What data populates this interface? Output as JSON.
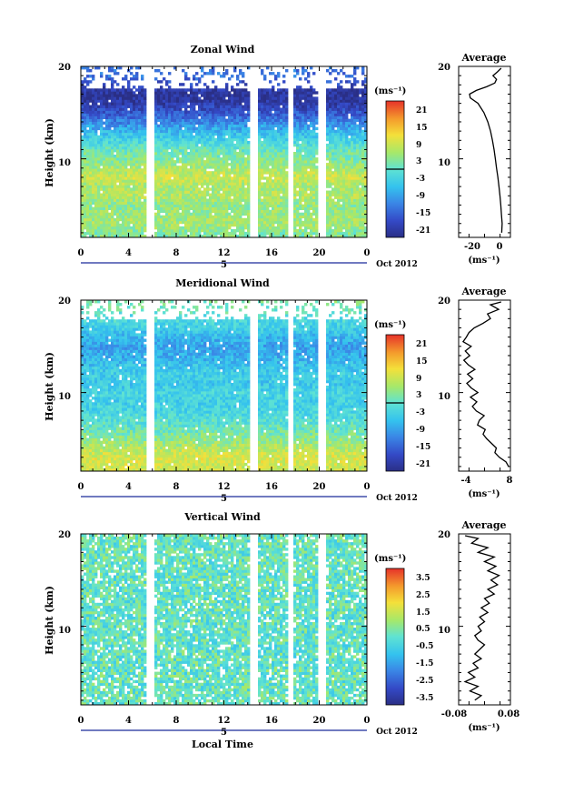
{
  "figure": {
    "xlabel": "Local Time",
    "date_label": "Oct 2012",
    "day_label": "5"
  },
  "chart_data": [
    {
      "type": "heatmap",
      "title": "Zonal Wind",
      "ylabel": "Height (km)",
      "xlabel": "Local Time",
      "x_ticks": [
        "0",
        "4",
        "8",
        "12",
        "16",
        "20",
        "0"
      ],
      "xlim": [
        0,
        24
      ],
      "y_ticks": [
        "10",
        "20"
      ],
      "ylim": [
        1.5,
        20
      ],
      "colorbar": {
        "unit_label": "(ms⁻¹)",
        "ticks": [
          "21",
          "15",
          "9",
          "3",
          "-3",
          "-9",
          "-15",
          "-21"
        ],
        "range": [
          -24,
          24
        ]
      },
      "field": {
        "profile": [
          [
            2,
            3
          ],
          [
            3,
            6
          ],
          [
            5,
            4
          ],
          [
            6,
            7
          ],
          [
            7,
            6
          ],
          [
            8,
            9
          ],
          [
            9,
            6
          ],
          [
            10,
            3
          ],
          [
            11,
            1
          ],
          [
            12,
            -3
          ],
          [
            13,
            -7
          ],
          [
            14,
            -12
          ],
          [
            15,
            -17
          ],
          [
            16,
            -21
          ],
          [
            17,
            -23
          ],
          [
            18,
            -19
          ],
          [
            19,
            -14
          ],
          [
            20,
            -14
          ]
        ],
        "missing_above": 17.5,
        "gap_columns": [
          5.8,
          14.5,
          17.6,
          20.2
        ]
      },
      "average_panel": {
        "title": "Average",
        "xlabel": "(ms⁻¹)",
        "x_ticks": [
          "-20",
          "0"
        ],
        "xlim": [
          -30,
          8
        ],
        "y_ticks": [
          "10",
          "20"
        ],
        "ylim": [
          1.5,
          20
        ],
        "profile": [
          [
            2,
            1.6
          ],
          [
            3,
            1.9
          ],
          [
            4,
            1.4
          ],
          [
            5,
            0.9
          ],
          [
            6,
            0.3
          ],
          [
            7,
            -0.4
          ],
          [
            8,
            -1.2
          ],
          [
            9,
            -2.2
          ],
          [
            10,
            -3.1
          ],
          [
            11,
            -4.0
          ],
          [
            12,
            -5.2
          ],
          [
            13,
            -6.6
          ],
          [
            14,
            -8.6
          ],
          [
            15,
            -11.5
          ],
          [
            16,
            -15.8
          ],
          [
            16.6,
            -21.5
          ],
          [
            17.0,
            -22.0
          ],
          [
            17.4,
            -17.0
          ],
          [
            17.8,
            -9.5
          ],
          [
            18.2,
            -3.5
          ],
          [
            18.6,
            -2.2
          ],
          [
            19.0,
            -4.8
          ],
          [
            19.4,
            -1.6
          ],
          [
            19.8,
            1.2
          ]
        ]
      }
    },
    {
      "type": "heatmap",
      "title": "Meridional Wind",
      "ylabel": "Height (km)",
      "xlabel": "Local Time",
      "x_ticks": [
        "0",
        "4",
        "8",
        "12",
        "16",
        "20",
        "0"
      ],
      "xlim": [
        0,
        24
      ],
      "y_ticks": [
        "10",
        "20"
      ],
      "ylim": [
        1.5,
        20
      ],
      "colorbar": {
        "unit_label": "(ms⁻¹)",
        "ticks": [
          "21",
          "15",
          "9",
          "3",
          "-3",
          "-9",
          "-15",
          "-21"
        ],
        "range": [
          -24,
          24
        ]
      },
      "field": {
        "profile": [
          [
            2,
            9
          ],
          [
            3,
            10
          ],
          [
            4,
            7
          ],
          [
            5,
            4
          ],
          [
            6,
            1
          ],
          [
            7,
            -1
          ],
          [
            8,
            -3
          ],
          [
            9,
            -4
          ],
          [
            10,
            -3
          ],
          [
            11,
            -5
          ],
          [
            12,
            -4
          ],
          [
            13,
            -6
          ],
          [
            14,
            -8
          ],
          [
            15,
            -9
          ],
          [
            16,
            -7
          ],
          [
            17,
            -4
          ],
          [
            18,
            -2
          ],
          [
            19,
            1
          ],
          [
            20,
            3
          ]
        ],
        "missing_above": 18.0,
        "gap_columns": [
          5.8,
          14.5,
          17.6,
          20.2
        ]
      },
      "average_panel": {
        "title": "Average",
        "xlabel": "(ms⁻¹)",
        "x_ticks": [
          "-4",
          "8"
        ],
        "xlim": [
          -6,
          8
        ],
        "y_ticks": [
          "10",
          "20"
        ],
        "ylim": [
          1.5,
          20
        ],
        "profile": [
          [
            2,
            7.5
          ],
          [
            2.5,
            6.8
          ],
          [
            3,
            5.0
          ],
          [
            3.5,
            3.8
          ],
          [
            4,
            4.2
          ],
          [
            4.5,
            2.9
          ],
          [
            5,
            1.6
          ],
          [
            5.5,
            0.6
          ],
          [
            6,
            1.2
          ],
          [
            6.5,
            -0.9
          ],
          [
            7,
            -0.4
          ],
          [
            7.5,
            0.9
          ],
          [
            8,
            -1.2
          ],
          [
            8.5,
            -2.3
          ],
          [
            9,
            -1.1
          ],
          [
            9.5,
            -2.8
          ],
          [
            10,
            -0.8
          ],
          [
            10.5,
            -2.6
          ],
          [
            11,
            -3.8
          ],
          [
            11.5,
            -2.2
          ],
          [
            12,
            -3.6
          ],
          [
            12.5,
            -1.6
          ],
          [
            13,
            -3.4
          ],
          [
            13.5,
            -4.6
          ],
          [
            14,
            -3.0
          ],
          [
            14.5,
            -4.2
          ],
          [
            15,
            -2.6
          ],
          [
            15.5,
            -4.8
          ],
          [
            16,
            -3.9
          ],
          [
            16.5,
            -3.2
          ],
          [
            17,
            -1.8
          ],
          [
            17.5,
            0.6
          ],
          [
            18,
            2.6
          ],
          [
            18.5,
            1.8
          ],
          [
            19,
            4.8
          ],
          [
            19.5,
            2.6
          ],
          [
            19.8,
            5.5
          ]
        ]
      }
    },
    {
      "type": "heatmap",
      "title": "Vertical Wind",
      "ylabel": "Height (km)",
      "xlabel": "Local Time",
      "x_ticks": [
        "0",
        "4",
        "8",
        "12",
        "16",
        "20",
        "0"
      ],
      "xlim": [
        0,
        24
      ],
      "y_ticks": [
        "10",
        "20"
      ],
      "ylim": [
        1.5,
        20
      ],
      "colorbar": {
        "unit_label": "(ms⁻¹)",
        "ticks": [
          "3.5",
          "2.5",
          "1.5",
          "0.5",
          "-0.5",
          "-1.5",
          "-2.5",
          "-3.5"
        ],
        "range": [
          -4,
          4
        ]
      },
      "field": {
        "profile": [
          [
            2,
            0.1
          ],
          [
            8,
            0.0
          ],
          [
            14,
            0.05
          ],
          [
            20,
            0.1
          ]
        ],
        "missing_above": 20.0,
        "gap_columns": [
          5.8,
          14.5,
          17.6,
          20.2
        ]
      },
      "average_panel": {
        "title": "Average",
        "xlabel": "(ms⁻¹)",
        "x_ticks": [
          "-0.08",
          "0.08"
        ],
        "xlim": [
          -0.08,
          0.08
        ],
        "y_ticks": [
          "10",
          "20"
        ],
        "ylim": [
          1.5,
          20
        ],
        "profile": [
          [
            2,
            -0.03
          ],
          [
            2.5,
            -0.01
          ],
          [
            3,
            -0.045
          ],
          [
            3.5,
            -0.02
          ],
          [
            4,
            -0.06
          ],
          [
            4.5,
            -0.03
          ],
          [
            5,
            -0.05
          ],
          [
            5.5,
            -0.02
          ],
          [
            6,
            -0.035
          ],
          [
            6.5,
            -0.01
          ],
          [
            7,
            -0.03
          ],
          [
            7.5,
            -0.015
          ],
          [
            8,
            0.0
          ],
          [
            8.5,
            -0.02
          ],
          [
            9,
            -0.03
          ],
          [
            9.5,
            -0.01
          ],
          [
            10,
            -0.02
          ],
          [
            10.5,
            0.0
          ],
          [
            11,
            -0.015
          ],
          [
            11.5,
            0.01
          ],
          [
            12,
            -0.01
          ],
          [
            12.5,
            0.015
          ],
          [
            13,
            0.0
          ],
          [
            13.5,
            0.03
          ],
          [
            14,
            0.01
          ],
          [
            14.5,
            0.04
          ],
          [
            15,
            0.02
          ],
          [
            15.5,
            0.045
          ],
          [
            16,
            0.01
          ],
          [
            16.5,
            0.035
          ],
          [
            17,
            0.0
          ],
          [
            17.5,
            0.03
          ],
          [
            18,
            -0.02
          ],
          [
            18.5,
            0.01
          ],
          [
            19,
            -0.04
          ],
          [
            19.5,
            -0.02
          ],
          [
            19.8,
            -0.06
          ]
        ]
      }
    }
  ]
}
